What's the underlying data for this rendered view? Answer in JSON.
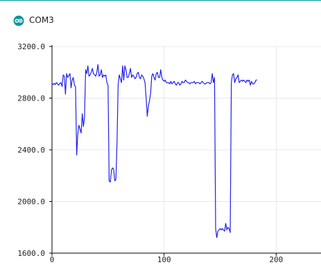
{
  "window": {
    "title": "COM3",
    "accent_color": "#00979c",
    "icon": "arduino-logo-icon"
  },
  "chart_data": {
    "type": "line",
    "title": "",
    "xlabel": "",
    "ylabel": "",
    "xlim": [
      0,
      240
    ],
    "ylim": [
      1600,
      3200
    ],
    "x_ticks": [
      0,
      100,
      200
    ],
    "y_ticks": [
      1600,
      2000,
      2400,
      2800,
      3200
    ],
    "x_tick_labels": [
      "0",
      "100",
      "200"
    ],
    "y_tick_labels": [
      "1600.0",
      "2000.0",
      "2400.0",
      "2800.0",
      "3200.0"
    ],
    "grid": true,
    "series": [
      {
        "color": "#1f1ff0",
        "values": [
          2910,
          2905,
          2915,
          2905,
          2920,
          2910,
          2900,
          2915,
          2920,
          2890,
          2980,
          2970,
          2830,
          2990,
          2960,
          2975,
          2990,
          2880,
          2940,
          2960,
          2900,
          2890,
          2360,
          2520,
          2590,
          2560,
          2530,
          2680,
          2580,
          2650,
          3020,
          2990,
          3050,
          2970,
          2980,
          3000,
          3030,
          2990,
          2980,
          2970,
          3000,
          3060,
          2970,
          2980,
          3020,
          2960,
          2980,
          2970,
          2980,
          2920,
          2900,
          2160,
          2150,
          2240,
          2260,
          2250,
          2160,
          2170,
          2450,
          2900,
          2980,
          2950,
          2920,
          3050,
          2940,
          3050,
          3020,
          2960,
          2960,
          2990,
          3030,
          2960,
          2980,
          2970,
          2950,
          2960,
          2990,
          3000,
          2960,
          2950,
          2980,
          2970,
          2950,
          2920,
          2800,
          2660,
          2740,
          2780,
          2840,
          2970,
          2990,
          2960,
          2940,
          2990,
          3000,
          2960,
          2960,
          3020,
          2960,
          2940,
          2930,
          2940,
          2920,
          2920,
          2920,
          2910,
          2930,
          2910,
          2920,
          2930,
          2910,
          2900,
          2920,
          2920,
          2900,
          2910,
          2930,
          2920,
          2920,
          2940,
          2930,
          2920,
          2920,
          2910,
          2920,
          2920,
          2920,
          2930,
          2910,
          2920,
          2920,
          2920,
          2910,
          2920,
          2930,
          2920,
          2910,
          2910,
          2920,
          2920,
          2920,
          2910,
          2920,
          2990,
          2920,
          2960,
          1790,
          1720,
          1770,
          1780,
          1790,
          1780,
          1790,
          1780,
          1770,
          1830,
          1780,
          1800,
          1790,
          1760,
          2920,
          2980,
          2990,
          2920,
          2950,
          2960,
          2980,
          2920,
          2930,
          2940,
          2930,
          2940,
          2930,
          2920,
          2940,
          2930,
          2940,
          2900,
          2930,
          2910,
          2910,
          2920,
          2940,
          2940
        ]
      }
    ]
  }
}
